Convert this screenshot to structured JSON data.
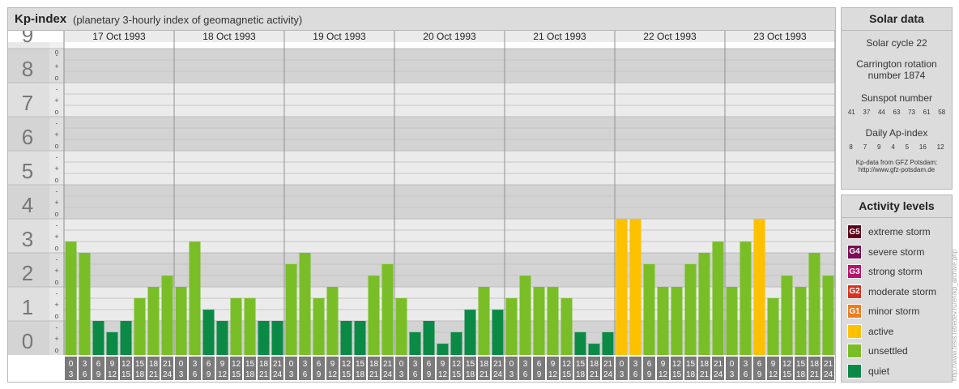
{
  "title": {
    "main": "Kp-index",
    "sub": "(planetary 3-hourly index of geomagnetic activity)"
  },
  "chart_data": {
    "type": "bar",
    "y_levels": [
      "0",
      "1",
      "2",
      "3",
      "4",
      "5",
      "6",
      "7",
      "8",
      "9"
    ],
    "minor_marks": [
      "o",
      "+",
      "-"
    ],
    "ylim": [
      0,
      9
    ],
    "days": [
      "17 Oct 1993",
      "18 Oct 1993",
      "19 Oct 1993",
      "20 Oct 1993",
      "21 Oct 1993",
      "22 Oct 1993",
      "23 Oct 1993"
    ],
    "interval_top": [
      "0",
      "3",
      "6",
      "9",
      "12",
      "15",
      "18",
      "21"
    ],
    "interval_bottom": [
      "3",
      "6",
      "9",
      "12",
      "15",
      "18",
      "21",
      "24"
    ],
    "values": [
      [
        3.33,
        3.0,
        1.0,
        0.67,
        1.0,
        1.67,
        2.0,
        2.33
      ],
      [
        2.0,
        3.33,
        1.33,
        1.0,
        1.67,
        1.67,
        1.0,
        1.0
      ],
      [
        2.67,
        3.0,
        1.67,
        2.0,
        1.0,
        1.0,
        2.33,
        2.67
      ],
      [
        1.67,
        0.67,
        1.0,
        0.33,
        0.67,
        1.33,
        2.0,
        1.33
      ],
      [
        1.67,
        2.33,
        2.0,
        2.0,
        1.67,
        0.67,
        0.33,
        0.67
      ],
      [
        4.0,
        4.0,
        2.67,
        2.0,
        2.0,
        2.67,
        3.0,
        3.33
      ],
      [
        2.0,
        3.33,
        4.0,
        1.67,
        2.33,
        2.0,
        3.0,
        2.33
      ]
    ],
    "colors": {
      "quiet": "#0b8a46",
      "unsettled": "#79be27",
      "active": "#fdc100"
    }
  },
  "solar": {
    "heading": "Solar data",
    "cycle": "Solar cycle 22",
    "carrington": "Carrington rotation number 1874",
    "sunspot_heading": "Sunspot number",
    "sunspot": [
      "41",
      "37",
      "44",
      "63",
      "73",
      "61",
      "58"
    ],
    "ap_heading": "Daily Ap-index",
    "ap": [
      "8",
      "7",
      "9",
      "4",
      "5",
      "16",
      "12"
    ],
    "credit_1": "Kp-data from GFZ Potsdam:",
    "credit_2": "http://www.gfz-potsdam.de"
  },
  "activity": {
    "heading": "Activity levels",
    "levels": [
      {
        "code": "G5",
        "label": "extreme storm",
        "color": "#5c0018"
      },
      {
        "code": "G4",
        "label": "severe storm",
        "color": "#7b0e56"
      },
      {
        "code": "G3",
        "label": "strong storm",
        "color": "#b8126c"
      },
      {
        "code": "G2",
        "label": "moderate storm",
        "color": "#d9331f"
      },
      {
        "code": "G1",
        "label": "minor storm",
        "color": "#ee7c1e"
      },
      {
        "code": "",
        "label": "active",
        "color": "#fdc100"
      },
      {
        "code": "",
        "label": "unsettled",
        "color": "#79be27"
      },
      {
        "code": "",
        "label": "quiet",
        "color": "#0b8a46"
      }
    ]
  },
  "watermark": "http://www.tesis.lebedev.ru/en/kp_archive.php"
}
